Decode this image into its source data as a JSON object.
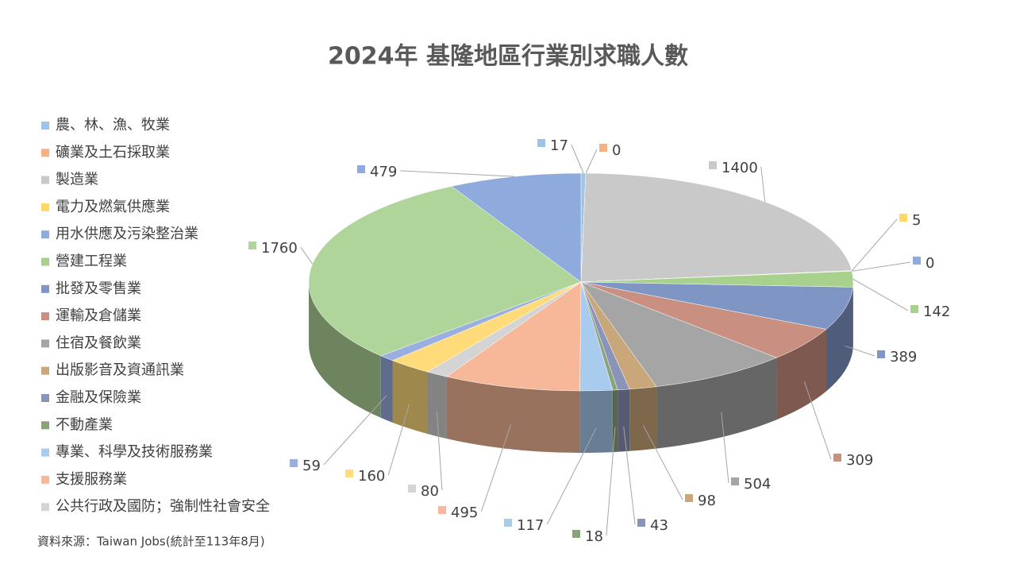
{
  "chart_data": {
    "type": "pie3d",
    "title": "2024年 基隆地區行業別求職人數",
    "source": "資料來源：Taiwan Jobs(統計至113年8月)",
    "categories": [
      "農、林、漁、牧業",
      "礦業及土石採取業",
      "製造業",
      "電力及燃氣供應業",
      "用水供應及污染整治業",
      "營建工程業",
      "批發及零售業",
      "運輸及倉儲業",
      "住宿及餐飲業",
      "出版影音及資通訊業",
      "金融及保險業",
      "不動產業",
      "專業、科學及技術服務業",
      "支援服務業",
      "公共行政及國防；強制性社會安全",
      null,
      null,
      null,
      null
    ],
    "values": [
      17,
      0,
      1400,
      5,
      0,
      142,
      389,
      309,
      504,
      98,
      43,
      18,
      117,
      495,
      80,
      160,
      59,
      1760,
      479
    ],
    "colors": [
      "#9dc3e6",
      "#f4b183",
      "#c9c9c9",
      "#ffd966",
      "#8faadc",
      "#a9d18e",
      "#7f96c4",
      "#c98f80",
      "#a5a5a5",
      "#c9a77a",
      "#8a93b8",
      "#8aa37a",
      "#a8cbee",
      "#f6b898",
      "#d4d4d4",
      "#ffdb7a",
      "#9aaee0",
      "#b0d59a",
      "#8fabdd"
    ]
  }
}
